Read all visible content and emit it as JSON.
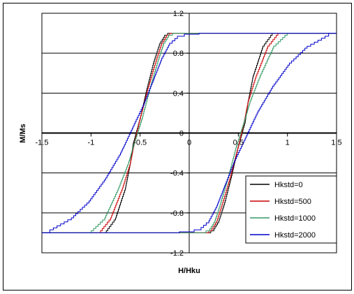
{
  "chart_data": {
    "type": "line",
    "xlabel": "H/Hku",
    "ylabel": "M/Ms",
    "xlim": [
      -1.5,
      1.5
    ],
    "ylim": [
      -1.2,
      1.2
    ],
    "x_ticks": [
      "-1.5",
      "-1",
      "-0.5",
      "0",
      "0.5",
      "1",
      "1.5"
    ],
    "y_ticks": [
      "-1.2",
      "-0.8",
      "-0.4",
      "0",
      "0.4",
      "0.8",
      "1.2"
    ],
    "grid": "horizontal",
    "legend_position": "bottom-right",
    "series": [
      {
        "name": "Hkstd=0",
        "color": "#000000",
        "branches": [
          {
            "x": [
              -1.5,
              -0.86,
              -0.75,
              -0.65,
              -0.6,
              -0.57,
              -0.5,
              -0.43,
              -0.36,
              -0.3,
              -0.25,
              -0.22,
              -0.15,
              0.0,
              1.5
            ],
            "y": [
              -1.0,
              -1.0,
              -0.85,
              -0.55,
              -0.3,
              -0.1,
              0.15,
              0.45,
              0.72,
              0.9,
              0.98,
              1.0,
              1.0,
              1.0,
              1.0
            ]
          },
          {
            "x": [
              1.5,
              0.86,
              0.75,
              0.65,
              0.6,
              0.57,
              0.5,
              0.43,
              0.36,
              0.3,
              0.25,
              0.22,
              0.15,
              0.0,
              -1.5
            ],
            "y": [
              1.0,
              1.0,
              0.85,
              0.55,
              0.3,
              0.1,
              -0.15,
              -0.45,
              -0.72,
              -0.9,
              -0.98,
              -1.0,
              -1.0,
              -1.0,
              -1.0
            ]
          }
        ]
      },
      {
        "name": "Hkstd=500",
        "color": "#cc0000",
        "branches": [
          {
            "x": [
              -1.5,
              -0.92,
              -0.8,
              -0.68,
              -0.6,
              -0.56,
              -0.5,
              -0.42,
              -0.34,
              -0.28,
              -0.23,
              -0.2,
              -0.12,
              0.0,
              1.5
            ],
            "y": [
              -1.0,
              -1.0,
              -0.85,
              -0.55,
              -0.3,
              -0.1,
              0.15,
              0.45,
              0.72,
              0.9,
              0.98,
              1.0,
              1.0,
              1.0,
              1.0
            ]
          },
          {
            "x": [
              1.5,
              0.92,
              0.8,
              0.68,
              0.6,
              0.56,
              0.5,
              0.42,
              0.34,
              0.28,
              0.23,
              0.2,
              0.12,
              0.0,
              -1.5
            ],
            "y": [
              1.0,
              1.0,
              0.85,
              0.55,
              0.3,
              0.1,
              -0.15,
              -0.45,
              -0.72,
              -0.9,
              -0.98,
              -1.0,
              -1.0,
              -1.0,
              -1.0
            ]
          }
        ]
      },
      {
        "name": "Hkstd=1000",
        "color": "#339966",
        "branches": [
          {
            "x": [
              -1.5,
              -1.02,
              -0.86,
              -0.72,
              -0.62,
              -0.56,
              -0.48,
              -0.4,
              -0.32,
              -0.26,
              -0.21,
              -0.17,
              -0.1,
              0.0,
              1.5
            ],
            "y": [
              -1.0,
              -1.0,
              -0.85,
              -0.55,
              -0.3,
              -0.1,
              0.15,
              0.45,
              0.72,
              0.9,
              0.98,
              1.0,
              1.0,
              1.0,
              1.0
            ]
          },
          {
            "x": [
              1.5,
              1.02,
              0.86,
              0.72,
              0.62,
              0.56,
              0.48,
              0.4,
              0.32,
              0.26,
              0.21,
              0.17,
              0.1,
              0.0,
              -1.5
            ],
            "y": [
              1.0,
              1.0,
              0.85,
              0.55,
              0.3,
              0.1,
              -0.15,
              -0.45,
              -0.72,
              -0.9,
              -0.98,
              -1.0,
              -1.0,
              -1.0,
              -1.0
            ]
          }
        ]
      },
      {
        "name": "Hkstd=2000",
        "color": "#0000cc",
        "branches": [
          {
            "x": [
              -1.5,
              -1.42,
              -1.2,
              -1.02,
              -0.85,
              -0.7,
              -0.58,
              -0.46,
              -0.36,
              -0.28,
              -0.2,
              -0.12,
              -0.05,
              0.1,
              1.5
            ],
            "y": [
              -1.0,
              -0.97,
              -0.85,
              -0.68,
              -0.45,
              -0.2,
              0.05,
              0.3,
              0.55,
              0.75,
              0.9,
              0.97,
              0.99,
              1.0,
              1.0
            ]
          },
          {
            "x": [
              1.5,
              1.42,
              1.2,
              1.02,
              0.85,
              0.7,
              0.58,
              0.46,
              0.36,
              0.28,
              0.2,
              0.12,
              0.05,
              -0.1,
              -1.5
            ],
            "y": [
              1.0,
              0.97,
              0.85,
              0.68,
              0.45,
              0.2,
              -0.05,
              -0.3,
              -0.55,
              -0.75,
              -0.9,
              -0.97,
              -0.99,
              -1.0,
              -1.0
            ]
          }
        ]
      }
    ]
  }
}
